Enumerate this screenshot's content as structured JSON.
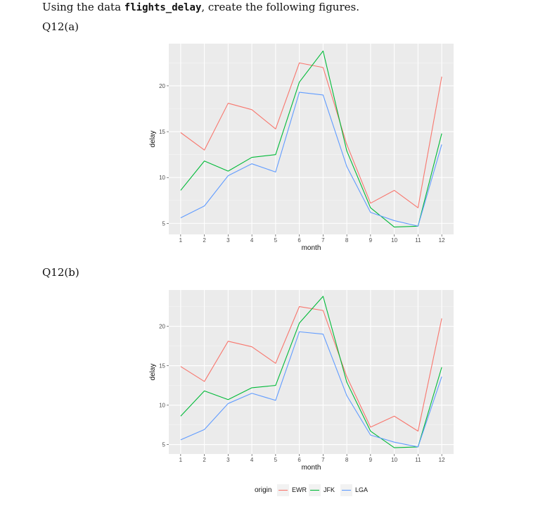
{
  "doc": {
    "intro_prefix": "Using the data ",
    "intro_code": "flights_delay",
    "intro_suffix": ", create the following figures.",
    "q12a": "Q12(a)",
    "q12b": "Q12(b)"
  },
  "chart_data": [
    {
      "type": "line",
      "xlabel": "month",
      "ylabel": "delay",
      "x": [
        1,
        2,
        3,
        4,
        5,
        6,
        7,
        8,
        9,
        10,
        11,
        12
      ],
      "xticks": [
        "1",
        "2",
        "3",
        "4",
        "5",
        "6",
        "7",
        "8",
        "9",
        "10",
        "11",
        "12"
      ],
      "yticks": [
        5,
        10,
        15,
        20
      ],
      "ylim": [
        3.8,
        24.6
      ],
      "xlim": [
        0.5,
        12.5
      ],
      "grid": true,
      "series": [
        {
          "name": "EWR",
          "color": "#F8766D",
          "values": [
            14.9,
            13.0,
            18.1,
            17.4,
            15.3,
            22.5,
            22.0,
            13.6,
            7.2,
            8.6,
            6.7,
            21.0
          ]
        },
        {
          "name": "JFK",
          "color": "#00BA38",
          "values": [
            8.6,
            11.8,
            10.7,
            12.2,
            12.5,
            20.4,
            23.8,
            12.9,
            6.7,
            4.6,
            4.7,
            14.8
          ]
        },
        {
          "name": "LGA",
          "color": "#619CFF",
          "values": [
            5.6,
            6.9,
            10.2,
            11.5,
            10.6,
            19.3,
            19.0,
            11.2,
            6.2,
            5.3,
            4.7,
            13.6
          ]
        }
      ]
    },
    {
      "type": "line",
      "xlabel": "month",
      "ylabel": "delay",
      "x": [
        1,
        2,
        3,
        4,
        5,
        6,
        7,
        8,
        9,
        10,
        11,
        12
      ],
      "xticks": [
        "1",
        "2",
        "3",
        "4",
        "5",
        "6",
        "7",
        "8",
        "9",
        "10",
        "11",
        "12"
      ],
      "yticks": [
        5,
        10,
        15,
        20
      ],
      "ylim": [
        3.8,
        24.6
      ],
      "xlim": [
        0.5,
        12.5
      ],
      "grid": true,
      "legend": {
        "title": "origin",
        "position": "bottom"
      },
      "series": [
        {
          "name": "EWR",
          "color": "#F8766D",
          "values": [
            14.9,
            13.0,
            18.1,
            17.4,
            15.3,
            22.5,
            22.0,
            13.6,
            7.2,
            8.6,
            6.7,
            21.0
          ]
        },
        {
          "name": "JFK",
          "color": "#00BA38",
          "values": [
            8.6,
            11.8,
            10.7,
            12.2,
            12.5,
            20.4,
            23.8,
            12.9,
            6.7,
            4.6,
            4.7,
            14.8
          ]
        },
        {
          "name": "LGA",
          "color": "#619CFF",
          "values": [
            5.6,
            6.9,
            10.2,
            11.5,
            10.6,
            19.3,
            19.0,
            11.2,
            6.2,
            5.3,
            4.7,
            13.6
          ]
        }
      ]
    }
  ]
}
